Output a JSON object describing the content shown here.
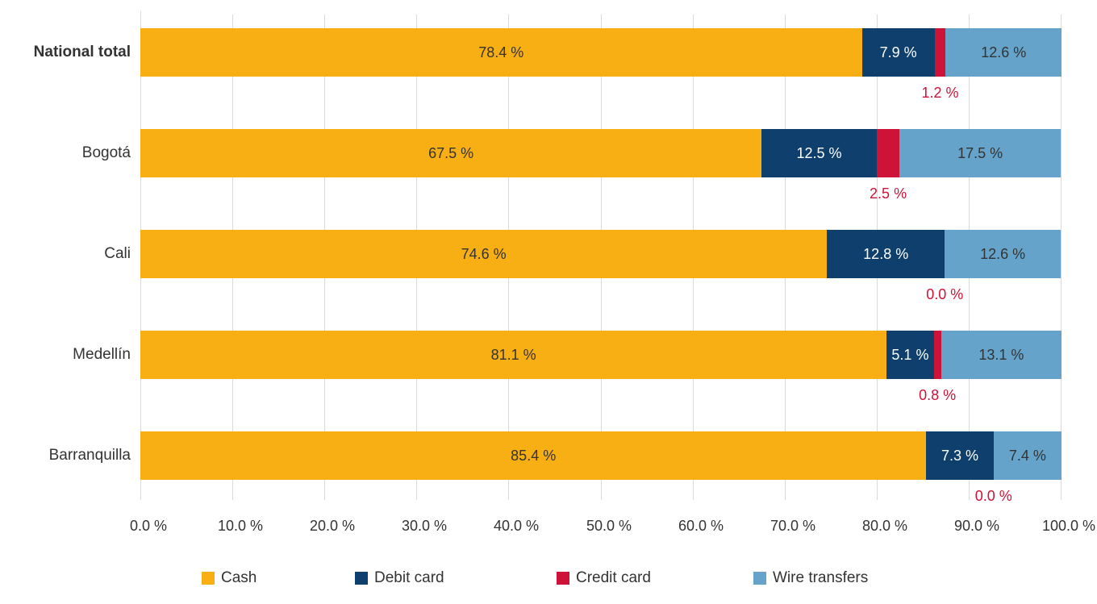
{
  "chart_data": {
    "type": "bar",
    "orientation": "horizontal",
    "stacked": true,
    "title": "",
    "xlabel": "",
    "ylabel": "",
    "xlim": [
      0,
      100
    ],
    "grid": true,
    "legend_position": "bottom",
    "categories": [
      "National total",
      "Bogotá",
      "Cali",
      "Medellín",
      "Barranquilla"
    ],
    "series": [
      {
        "name": "Cash",
        "color": "#F7AF13",
        "values": [
          78.4,
          67.5,
          74.6,
          81.1,
          85.4
        ]
      },
      {
        "name": "Debit card",
        "color": "#0E3F6D",
        "values": [
          7.9,
          12.5,
          12.8,
          5.1,
          7.3
        ]
      },
      {
        "name": "Credit card",
        "color": "#CE1338",
        "values": [
          1.2,
          2.5,
          0.0,
          0.8,
          0.0
        ]
      },
      {
        "name": "Wire transfers",
        "color": "#65A3CA",
        "values": [
          12.6,
          17.5,
          12.6,
          13.1,
          7.4
        ]
      }
    ],
    "x_ticks": [
      "0.0 %",
      "10.0 %",
      "20.0 %",
      "30.0 %",
      "40.0 %",
      "50.0 %",
      "60.0 %",
      "70.0 %",
      "80.0 %",
      "90.0 %",
      "100.0 %"
    ],
    "value_suffix": " %"
  },
  "rows": [
    {
      "label": "National total",
      "bold": true,
      "labels": [
        "78.4 %",
        "7.9 %",
        "1.2 %",
        "12.6 %"
      ]
    },
    {
      "label": "Bogotá",
      "bold": false,
      "labels": [
        "67.5 %",
        "12.5 %",
        "2.5 %",
        "17.5 %"
      ]
    },
    {
      "label": "Cali",
      "bold": false,
      "labels": [
        "74.6 %",
        "12.8 %",
        "0.0 %",
        "12.6 %"
      ]
    },
    {
      "label": "Medellín",
      "bold": false,
      "labels": [
        "81.1 %",
        "5.1 %",
        "0.8 %",
        "13.1 %"
      ]
    },
    {
      "label": "Barranquilla",
      "bold": false,
      "labels": [
        "85.4 %",
        "7.3 %",
        "0.0 %",
        "7.4 %"
      ]
    }
  ],
  "legend": [
    {
      "label": "Cash",
      "color": "#F7AF13"
    },
    {
      "label": "Debit card",
      "color": "#0E3F6D"
    },
    {
      "label": "Credit card",
      "color": "#CE1338"
    },
    {
      "label": "Wire transfers",
      "color": "#65A3CA"
    }
  ],
  "label_colors": {
    "on_light": "#333333",
    "on_dark": "#ffffff",
    "credit_outside": "#CE1338"
  }
}
